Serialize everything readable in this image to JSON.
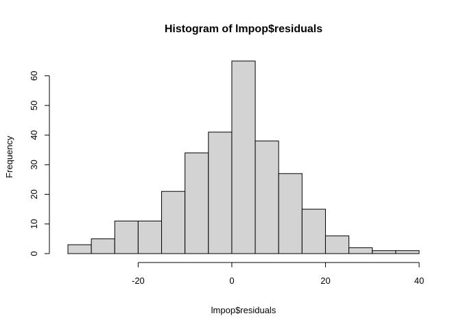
{
  "chart_data": {
    "type": "bar",
    "title": "Histogram of lmpop$residuals",
    "xlabel": "lmpop$residuals",
    "ylabel": "Frequency",
    "bins": [
      {
        "from": -35,
        "to": -30,
        "count": 3
      },
      {
        "from": -30,
        "to": -25,
        "count": 5
      },
      {
        "from": -25,
        "to": -20,
        "count": 11
      },
      {
        "from": -20,
        "to": -15,
        "count": 11
      },
      {
        "from": -15,
        "to": -10,
        "count": 21
      },
      {
        "from": -10,
        "to": -5,
        "count": 34
      },
      {
        "from": -5,
        "to": 0,
        "count": 41
      },
      {
        "from": 0,
        "to": 5,
        "count": 65
      },
      {
        "from": 5,
        "to": 10,
        "count": 38
      },
      {
        "from": 10,
        "to": 15,
        "count": 27
      },
      {
        "from": 15,
        "to": 20,
        "count": 15
      },
      {
        "from": 20,
        "to": 25,
        "count": 6
      },
      {
        "from": 25,
        "to": 30,
        "count": 2
      },
      {
        "from": 30,
        "to": 35,
        "count": 1
      },
      {
        "from": 35,
        "to": 40,
        "count": 1
      }
    ],
    "xlim": [
      -35,
      40
    ],
    "ylim": [
      0,
      65
    ],
    "x_ticks": [
      -20,
      0,
      20,
      40
    ],
    "x_tick_labels": [
      "-20",
      "0",
      "20",
      "40"
    ],
    "y_ticks": [
      0,
      10,
      20,
      30,
      40,
      50,
      60
    ],
    "y_tick_labels": [
      "0",
      "10",
      "20",
      "30",
      "40",
      "50",
      "60"
    ],
    "grid": false,
    "bar_fill": "#d3d3d3",
    "bar_stroke": "#000000"
  }
}
